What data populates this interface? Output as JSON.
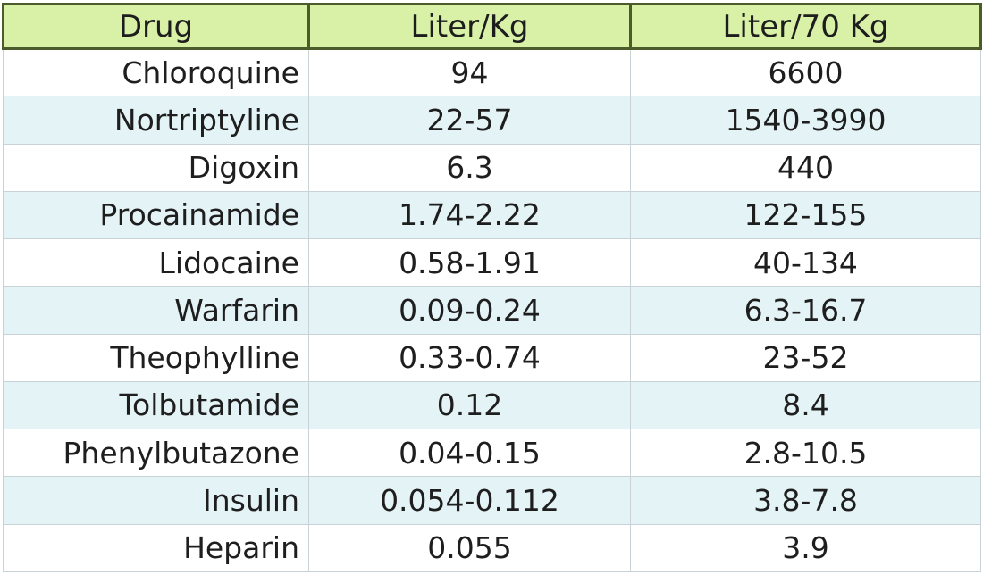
{
  "table": {
    "headers": [
      "Drug",
      "Liter/Kg",
      "Liter/70 Kg"
    ],
    "rows": [
      [
        "Chloroquine",
        "94",
        "6600"
      ],
      [
        "Nortriptyline",
        "22-57",
        "1540-3990"
      ],
      [
        "Digoxin",
        "6.3",
        "440"
      ],
      [
        "Procainamide",
        "1.74-2.22",
        "122-155"
      ],
      [
        "Lidocaine",
        "0.58-1.91",
        "40-134"
      ],
      [
        "Warfarin",
        "0.09-0.24",
        "6.3-16.7"
      ],
      [
        "Theophylline",
        "0.33-0.74",
        "23-52"
      ],
      [
        "Tolbutamide",
        "0.12",
        "8.4"
      ],
      [
        "Phenylbutazone",
        "0.04-0.15",
        "2.8-10.5"
      ],
      [
        "Insulin",
        "0.054-0.112",
        "3.8-7.8"
      ],
      [
        "Heparin",
        "0.055",
        "3.9"
      ]
    ]
  },
  "colors": {
    "header_bg": "#d9f0a7",
    "header_border": "#4c5b2a",
    "row_shaded": "#e4f3f6",
    "row_plain": "#ffffff",
    "grid": "#c9d3d7"
  }
}
